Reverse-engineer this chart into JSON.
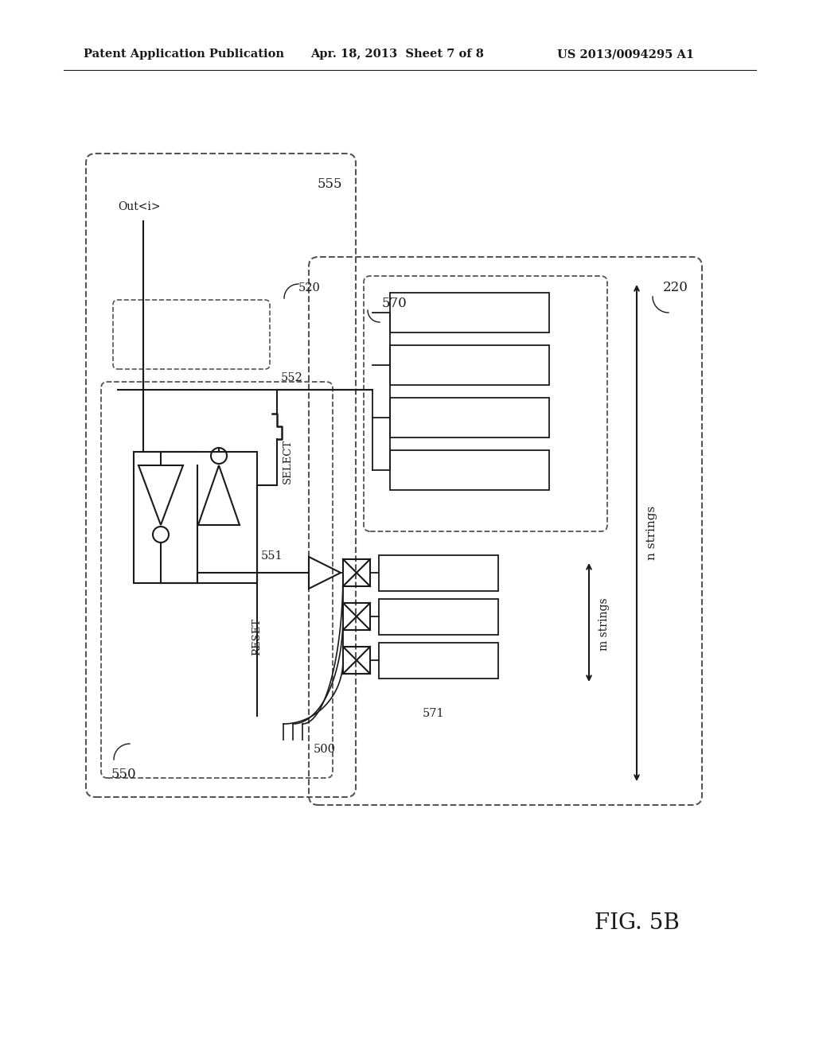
{
  "header_left": "Patent Application Publication",
  "header_center": "Apr. 18, 2013  Sheet 7 of 8",
  "header_right": "US 2013/0094295 A1",
  "fig_label": "FIG. 5B",
  "bg_color": "#ffffff",
  "line_color": "#1a1a1a",
  "dash_color": "#555555"
}
